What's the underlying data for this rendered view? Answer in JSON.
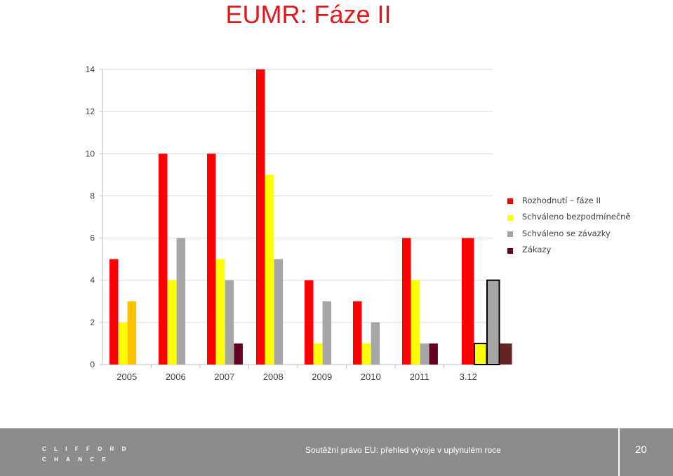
{
  "slide": {
    "title": "EUMR: Fáze II",
    "footer_text": "Soutěžní právo EU:  přehled vývoje v uplynulém roce",
    "page_number": "20",
    "logo_line1": "CLIFFORD",
    "logo_line2": "CHANCE"
  },
  "chart_data": {
    "type": "bar",
    "categories": [
      "2005",
      "2006",
      "2007",
      "2008",
      "2009",
      "2010",
      "2011",
      "3.12"
    ],
    "ylim": [
      0,
      14
    ],
    "yticks": [
      "0",
      "2",
      "4",
      "6",
      "8",
      "10",
      "12",
      "14"
    ],
    "grid": true,
    "legend_position": "right",
    "series": [
      {
        "name": "Rozhodnutí – fáze II",
        "values": [
          5,
          10,
          10,
          14,
          4,
          3,
          6,
          6
        ],
        "color": "#ff0000"
      },
      {
        "name": "Schváleno bezpodmínečně",
        "values": [
          2,
          4,
          5,
          9,
          1,
          1,
          4,
          1
        ],
        "color": "#ffff00"
      },
      {
        "name": "Schváleno se závazky",
        "values": [
          3,
          6,
          4,
          5,
          3,
          2,
          1,
          4
        ],
        "color": "#a6a6a6"
      },
      {
        "name": "Zákazy",
        "values": [
          0,
          0,
          1,
          0,
          0,
          0,
          1,
          1
        ],
        "color": "#660020"
      }
    ],
    "category_color_overrides": [
      {
        "category": "2005",
        "series": "Schváleno se závazky",
        "color": "#ffc000"
      },
      {
        "category": "3.12",
        "series": "Zákazy",
        "color": "#632523"
      }
    ],
    "outlined_bars": [
      {
        "category": "3.12",
        "series": "Schváleno bezpodmínečně"
      },
      {
        "category": "3.12",
        "series": "Schváleno se závazky"
      }
    ]
  }
}
